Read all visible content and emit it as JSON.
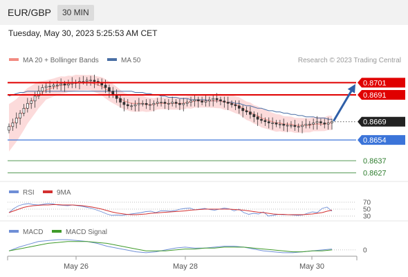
{
  "header": {
    "symbol": "EUR/GBP",
    "timeframe": "30 MIN"
  },
  "datetime": "Tuesday, May 30, 2023 5:25:53 AM CET",
  "colors": {
    "price": "#333333",
    "bollinger_fill": "#fbd5d5",
    "ma20": "#f28b82",
    "ma50": "#4a6fa5",
    "resistance": "#e00000",
    "support": "#3b74d9",
    "target": "#3a8a3a",
    "rsi": "#6f8fd6",
    "rsi_ma": "#d33030",
    "macd": "#6f8fd6",
    "macd_signal": "#3f9a2a",
    "arrow": "#2f5fa8"
  },
  "chart_data": [
    {
      "type": "candlestick",
      "panel": "price",
      "legend": [
        {
          "name": "MA 20 + Bollinger Bands",
          "color": "#f28b82"
        },
        {
          "name": "MA 50",
          "color": "#4a6fa5"
        }
      ],
      "source": "Research © 2023 Trading Central",
      "ylim": [
        0.862,
        0.8712
      ],
      "last_price": "0.8669",
      "x_ticks": [
        "May 26",
        "May 28",
        "May 30"
      ],
      "close": [
        0.8665,
        0.8668,
        0.8672,
        0.8676,
        0.868,
        0.8684,
        0.8686,
        0.869,
        0.8694,
        0.8697,
        0.8698,
        0.8698,
        0.8699,
        0.8699,
        0.87,
        0.8699,
        0.87,
        0.8701,
        0.8701,
        0.8702,
        0.8702,
        0.8703,
        0.8703,
        0.8702,
        0.8701,
        0.8699,
        0.8697,
        0.8694,
        0.8691,
        0.8688,
        0.8685,
        0.8683,
        0.8682,
        0.8682,
        0.8683,
        0.8684,
        0.8684,
        0.8683,
        0.8683,
        0.8684,
        0.8685,
        0.8685,
        0.8684,
        0.8684,
        0.8685,
        0.8684,
        0.8683,
        0.8684,
        0.8685,
        0.8686,
        0.8687,
        0.8686,
        0.8685,
        0.8686,
        0.8687,
        0.8688,
        0.8687,
        0.8686,
        0.8685,
        0.8684,
        0.8683,
        0.8682,
        0.868,
        0.8678,
        0.8677,
        0.8675,
        0.8673,
        0.8671,
        0.867,
        0.8669,
        0.8668,
        0.8668,
        0.8667,
        0.8667,
        0.8666,
        0.8666,
        0.8666,
        0.8665,
        0.8665,
        0.8666,
        0.8667,
        0.8667,
        0.8668,
        0.8669,
        0.8668,
        0.8667,
        0.8668,
        0.8669
      ],
      "ma20": [
        0.8664,
        0.8667,
        0.867,
        0.8674,
        0.8678,
        0.8682,
        0.8685,
        0.8688,
        0.8691,
        0.8693,
        0.8695,
        0.8696,
        0.8697,
        0.8698,
        0.8699,
        0.8699,
        0.87,
        0.87,
        0.8701,
        0.8701,
        0.8701,
        0.8701,
        0.8701,
        0.87,
        0.8699,
        0.8698,
        0.8696,
        0.8694,
        0.8692,
        0.869,
        0.8688,
        0.8686,
        0.8685,
        0.8684,
        0.8684,
        0.8684,
        0.8684,
        0.8683,
        0.8683,
        0.8683,
        0.8684,
        0.8684,
        0.8684,
        0.8684,
        0.8684,
        0.8684,
        0.8684,
        0.8684,
        0.8685,
        0.8685,
        0.8686,
        0.8686,
        0.8686,
        0.8686,
        0.8686,
        0.8686,
        0.8686,
        0.8686,
        0.8685,
        0.8685,
        0.8684,
        0.8683,
        0.8682,
        0.868,
        0.8678,
        0.8677,
        0.8675,
        0.8674,
        0.8672,
        0.8671,
        0.867,
        0.8669,
        0.8668,
        0.8668,
        0.8667,
        0.8667,
        0.8667,
        0.8666,
        0.8666,
        0.8666,
        0.8666,
        0.8666,
        0.8667,
        0.8667,
        0.8667,
        0.8667,
        0.8668,
        0.8668
      ],
      "ma50": [
        0.869,
        0.8691,
        0.8692,
        0.8693,
        0.8693,
        0.8694,
        0.8694,
        0.8694,
        0.8694,
        0.8694,
        0.8694,
        0.8694,
        0.8694,
        0.8694,
        0.8694,
        0.8694,
        0.8694,
        0.8694,
        0.8694,
        0.8694,
        0.8694,
        0.8694,
        0.8694,
        0.8694,
        0.8694,
        0.8694,
        0.8694,
        0.8694,
        0.8694,
        0.8694,
        0.8694,
        0.8694,
        0.8694,
        0.8694,
        0.8693,
        0.8693,
        0.8693,
        0.8692,
        0.8692,
        0.8691,
        0.8691,
        0.869,
        0.869,
        0.8689,
        0.8689,
        0.8689,
        0.8688,
        0.8688,
        0.8688,
        0.8687,
        0.8687,
        0.8687,
        0.8687,
        0.8687,
        0.8686,
        0.8686,
        0.8686,
        0.8686,
        0.8685,
        0.8685,
        0.8685,
        0.8684,
        0.8684,
        0.8683,
        0.8682,
        0.8682,
        0.8681,
        0.868,
        0.868,
        0.8679,
        0.8678,
        0.8678,
        0.8677,
        0.8677,
        0.8676,
        0.8676,
        0.8675,
        0.8675,
        0.8674,
        0.8674,
        0.8673,
        0.8673,
        0.8673,
        0.8672,
        0.8672,
        0.8672,
        0.8671,
        0.8671
      ],
      "levels": [
        {
          "label": "0.8701",
          "value": 0.8701,
          "kind": "resistance"
        },
        {
          "label": "0.8691",
          "value": 0.8691,
          "kind": "resistance"
        },
        {
          "label": "0.8654",
          "value": 0.8654,
          "kind": "support"
        },
        {
          "label": "0.8637",
          "value": 0.8637,
          "kind": "target"
        },
        {
          "label": "0.8627",
          "value": 0.8627,
          "kind": "target"
        }
      ],
      "arrow": {
        "direction": "up",
        "from": 0.8669,
        "to": 0.8701
      }
    },
    {
      "type": "line",
      "panel": "rsi",
      "legend": [
        {
          "name": "RSI",
          "color": "#6f8fd6"
        },
        {
          "name": "9MA",
          "color": "#d33030"
        }
      ],
      "ylim": [
        20,
        80
      ],
      "y_ticks": [
        "70",
        "50",
        "30"
      ],
      "rsi": [
        40,
        52,
        60,
        64,
        66,
        63,
        62,
        64,
        66,
        65,
        62,
        61,
        60,
        62,
        60,
        58,
        55,
        52,
        47,
        42,
        36,
        32,
        33,
        32,
        34,
        36,
        38,
        40,
        43,
        44,
        40,
        45,
        45,
        44,
        46,
        50,
        52,
        53,
        48,
        50,
        52,
        49,
        47,
        50,
        53,
        51,
        45,
        50,
        40,
        35,
        38,
        36,
        42,
        30,
        32,
        35,
        34,
        34,
        33,
        32,
        33,
        38,
        42,
        40,
        52,
        56,
        44
      ],
      "rsi_ma": [
        40,
        45,
        50,
        55,
        58,
        60,
        61,
        62,
        62,
        63,
        63,
        62,
        62,
        62,
        61,
        60,
        58,
        56,
        53,
        50,
        46,
        42,
        39,
        37,
        35,
        34,
        34,
        35,
        36,
        38,
        39,
        40,
        41,
        42,
        43,
        44,
        45,
        47,
        48,
        49,
        50,
        50,
        50,
        50,
        50,
        50,
        49,
        48,
        47,
        45,
        43,
        41,
        40,
        38,
        36,
        35,
        35,
        34,
        34,
        34,
        34,
        35,
        36,
        38,
        40,
        44,
        47
      ]
    },
    {
      "type": "line",
      "panel": "macd",
      "legend": [
        {
          "name": "MACD",
          "color": "#6f8fd6"
        },
        {
          "name": "MACD Signal",
          "color": "#3f9a2a"
        }
      ],
      "ylim": [
        -0.0006,
        0.0014
      ],
      "y_ticks": [
        "0"
      ],
      "macd": [
        -0.0001,
        0.0003,
        0.0006,
        0.0009,
        0.001,
        0.0011,
        0.0011,
        0.001,
        0.0009,
        0.0007,
        0.0004,
        0.0002,
        0.0,
        -0.0002,
        -0.0003,
        -0.0002,
        0.0,
        0.0002,
        0.0003,
        0.0002,
        0.0002,
        0.0003,
        0.0004,
        0.0004,
        0.0003,
        0.0001,
        -0.0001,
        -0.0002,
        -0.0003,
        -0.0003,
        -0.0002,
        -0.0001,
        0.0,
        0.0001
      ],
      "macd_signal": [
        -0.0001,
        0.0001,
        0.0003,
        0.0005,
        0.0007,
        0.0008,
        0.0009,
        0.0009,
        0.0009,
        0.0008,
        0.0007,
        0.0005,
        0.0003,
        0.0001,
        -0.0001,
        -0.0001,
        -0.0001,
        0.0,
        0.0001,
        0.0001,
        0.0002,
        0.0002,
        0.0003,
        0.0003,
        0.0003,
        0.0002,
        0.0001,
        0.0,
        -0.0001,
        -0.0002,
        -0.0002,
        -0.0001,
        -0.0001,
        0.0
      ]
    }
  ]
}
